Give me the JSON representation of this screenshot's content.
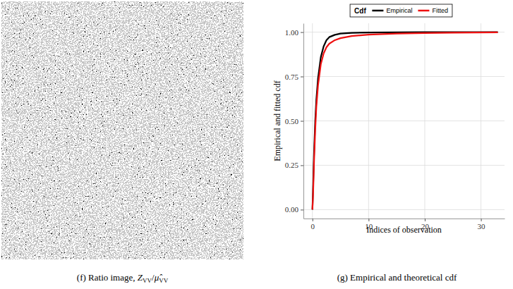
{
  "image_panel": {
    "caption": [
      {
        "text": "(f) Ratio image, "
      },
      {
        "text": "Z",
        "italic": true
      },
      {
        "text": "VV",
        "sub": true
      },
      {
        "text": "/"
      },
      {
        "text": "μ̂",
        "italic": true
      },
      {
        "text": "VV",
        "sub": true
      }
    ]
  },
  "chart_data": {
    "type": "line",
    "caption": "(g) Empirical and theoretical cdf",
    "x_label": "Indices of observation",
    "y_label": "Empirical and fitted cdf",
    "legend_title": "Cdf",
    "legend": "top",
    "grid": true,
    "x": [
      0,
      0.1,
      0.2,
      0.3,
      0.5,
      0.7,
      1,
      1.5,
      2,
      2.5,
      3,
      4,
      5,
      7,
      10,
      15,
      20,
      25,
      33
    ],
    "series": [
      {
        "name": "Empirical",
        "color": "#000000",
        "values": [
          0,
          0.1,
          0.22,
          0.33,
          0.5,
          0.62,
          0.74,
          0.86,
          0.92,
          0.955,
          0.972,
          0.985,
          0.992,
          0.996,
          0.998,
          0.999,
          1,
          1,
          1
        ]
      },
      {
        "name": "Fitted",
        "color": "#ee1111",
        "values": [
          0,
          0.07,
          0.17,
          0.28,
          0.45,
          0.58,
          0.7,
          0.82,
          0.88,
          0.915,
          0.935,
          0.955,
          0.966,
          0.978,
          0.986,
          0.992,
          0.995,
          0.997,
          0.999
        ]
      }
    ],
    "xlim": [
      -1.6,
      34.2
    ],
    "ylim": [
      -0.05,
      1.05
    ],
    "xticks": [
      0,
      10,
      20,
      30
    ],
    "yticks": [
      {
        "value": 0,
        "label": "0.00"
      },
      {
        "value": 0.25,
        "label": "0.25"
      },
      {
        "value": 0.5,
        "label": "0.50"
      },
      {
        "value": 0.75,
        "label": "0.75"
      },
      {
        "value": 1,
        "label": "1.00"
      }
    ]
  }
}
